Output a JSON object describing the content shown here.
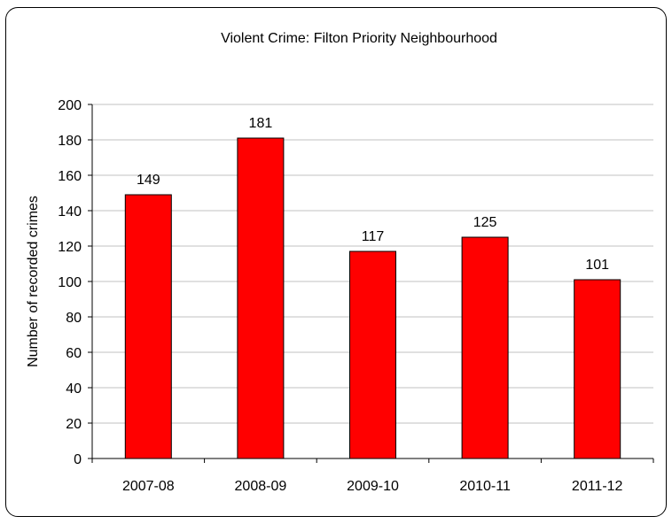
{
  "chart_data": {
    "type": "bar",
    "title": "Violent Crime: Filton Priority Neighbourhood",
    "xlabel": "",
    "ylabel": "Number of recorded crimes",
    "categories": [
      "2007-08",
      "2008-09",
      "2009-10",
      "2010-11",
      "2011-12"
    ],
    "values": [
      149,
      181,
      117,
      125,
      101
    ],
    "data_labels": [
      "149",
      "181",
      "117",
      "125",
      "101"
    ],
    "ylim": [
      0,
      200
    ],
    "yticks": [
      "0",
      "20",
      "40",
      "60",
      "80",
      "100",
      "120",
      "140",
      "160",
      "180",
      "200"
    ],
    "grid": true,
    "legend": "none",
    "colors": {
      "bar": "#ff0000",
      "bar_stroke": "#000000",
      "grid": "#c0c0c0",
      "axis": "#000000"
    }
  }
}
